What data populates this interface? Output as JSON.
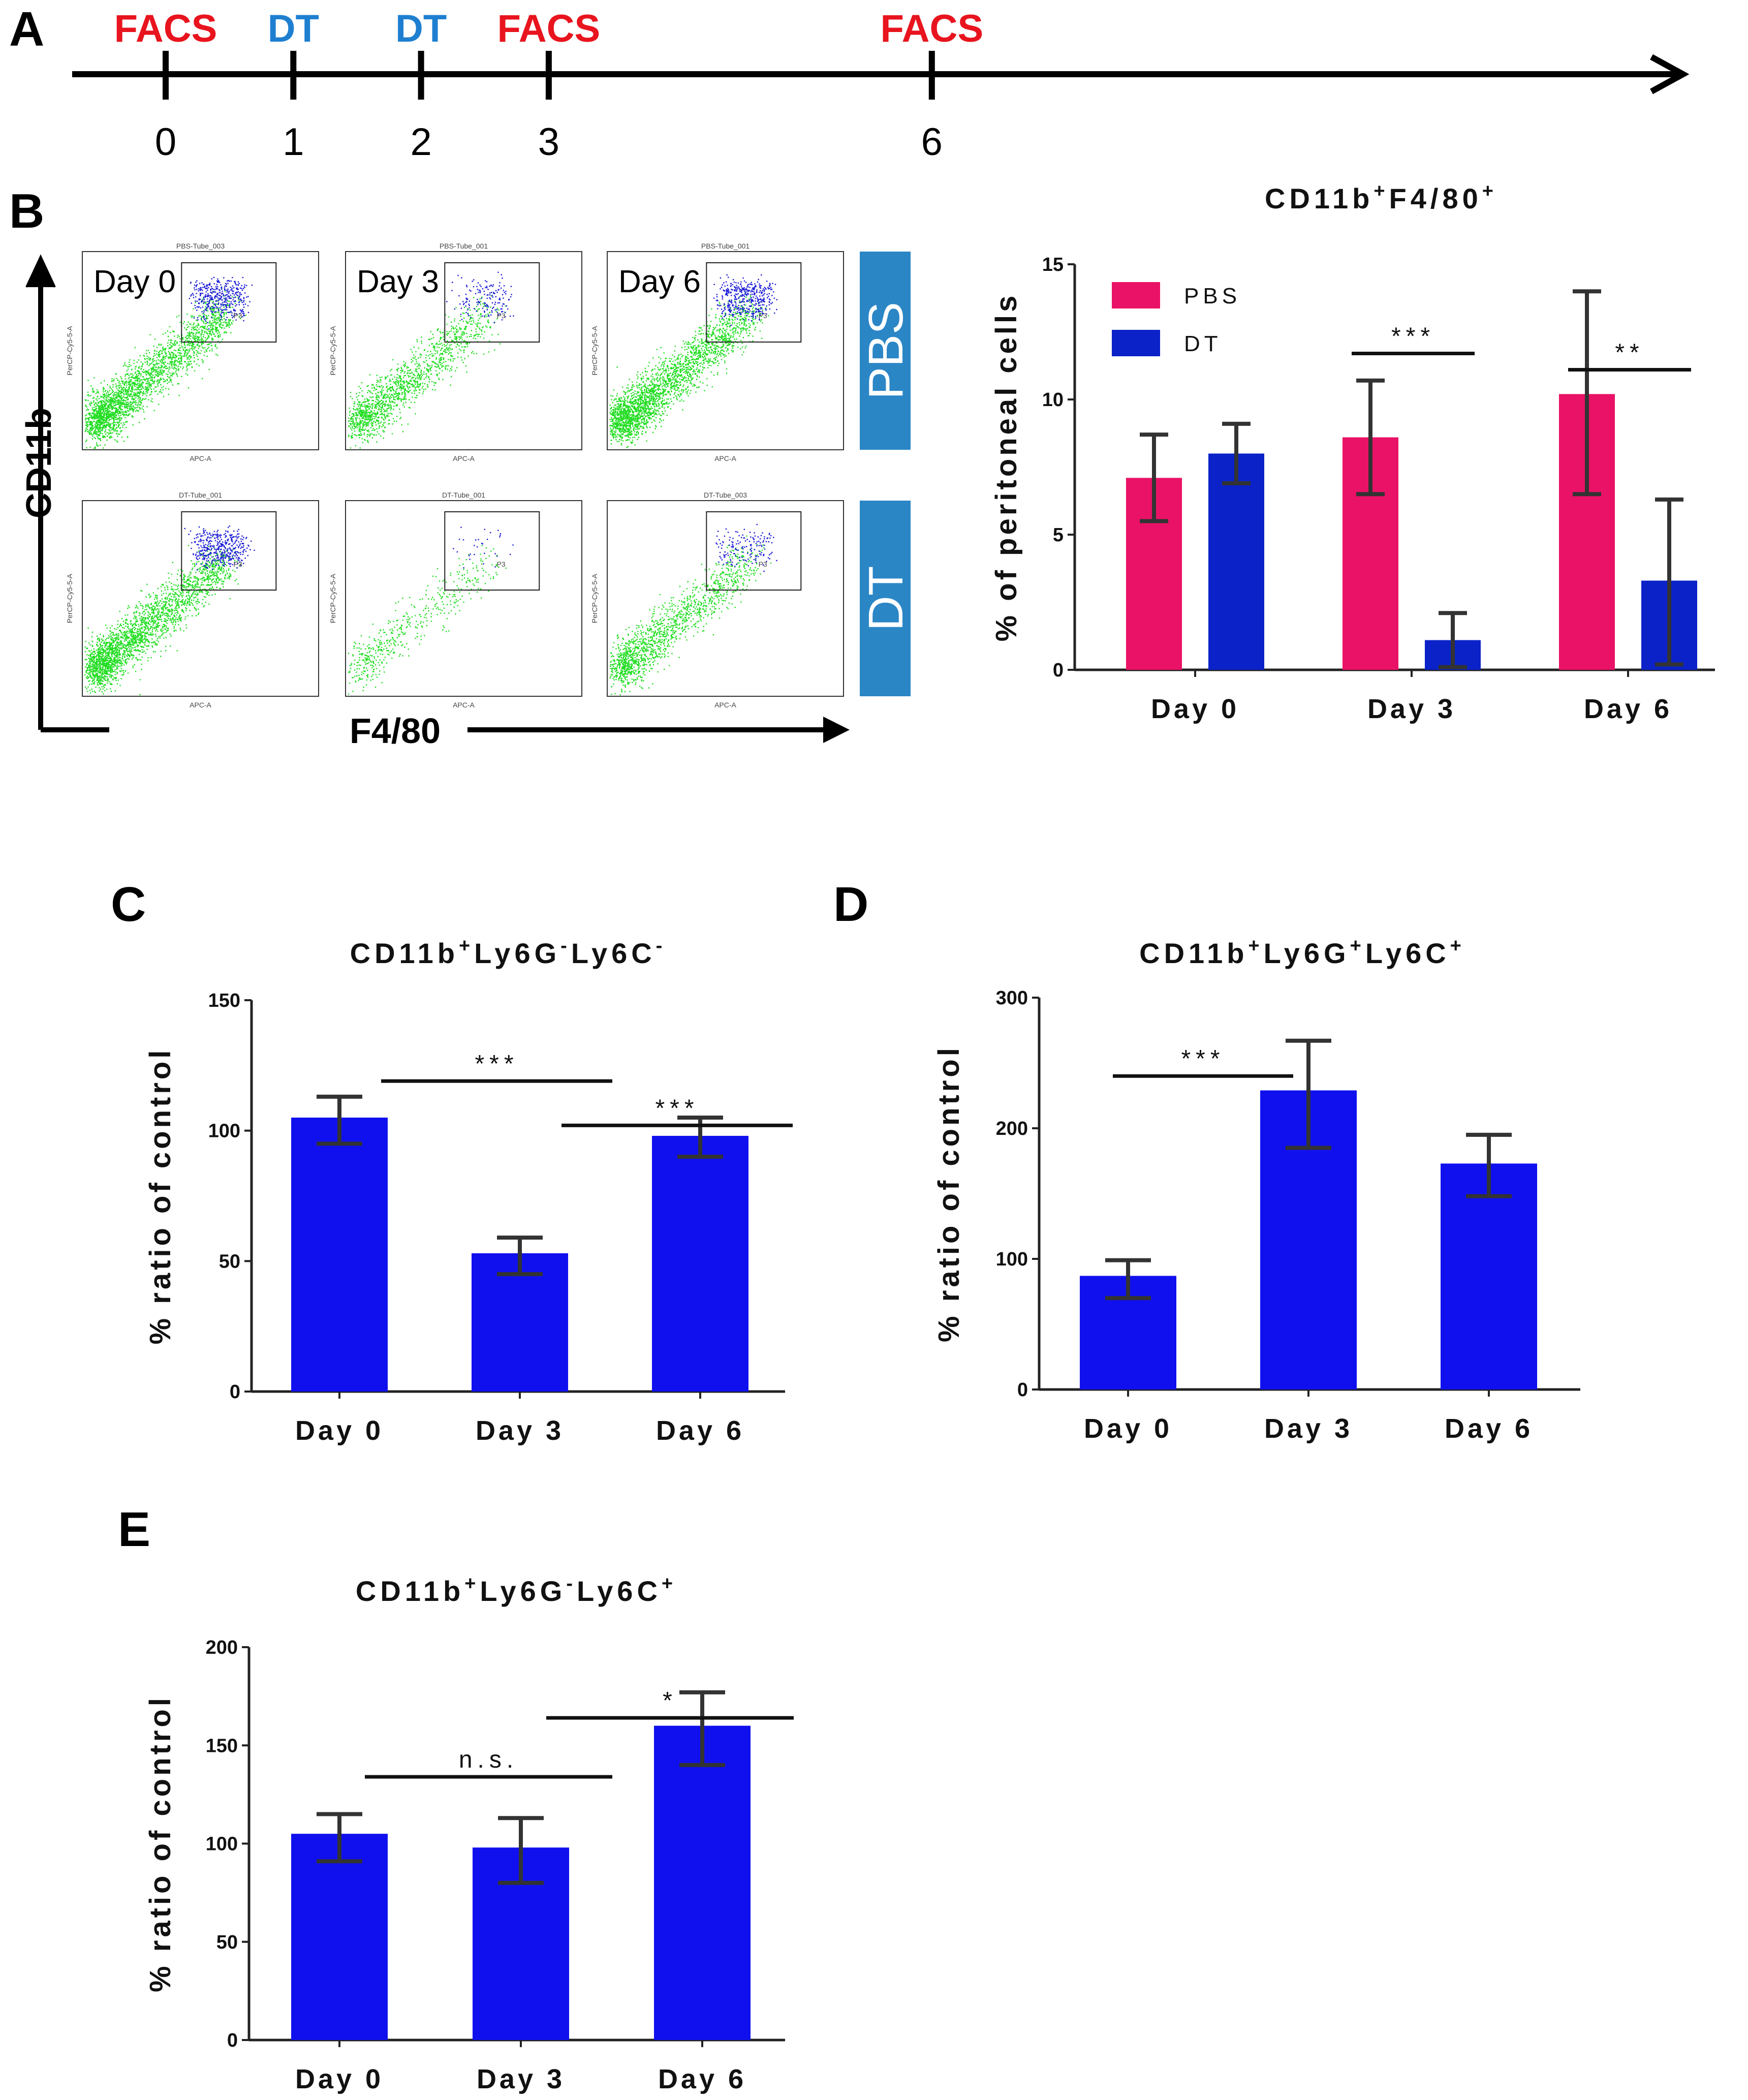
{
  "panels": {
    "A": "A",
    "B": "B",
    "C": "C",
    "D": "D",
    "E": "E"
  },
  "colors": {
    "facs": "#e8141e",
    "dt": "#1e7fd0",
    "pbs_bar": "#ea1266",
    "dt_bar": "#0a22c8",
    "bar_blue": "#1010ee",
    "facs_side_box": "#2b86c6",
    "gate_blue": "#1a1ad6",
    "dots_green": "#22dd22"
  },
  "timeline": {
    "events": [
      {
        "label": "FACS",
        "kind": "facs",
        "day": 0,
        "day_label": "0"
      },
      {
        "label": "DT",
        "kind": "dt",
        "day": 1,
        "day_label": "1"
      },
      {
        "label": "DT",
        "kind": "dt",
        "day": 2,
        "day_label": "2"
      },
      {
        "label": "FACS",
        "kind": "facs",
        "day": 3,
        "day_label": "3"
      },
      {
        "label": "FACS",
        "kind": "facs",
        "day": 6,
        "day_label": "6"
      }
    ]
  },
  "facs": {
    "y_axis": "CD11b",
    "x_axis": "F4/80",
    "rows": [
      {
        "side_label": "PBS",
        "plots": [
          {
            "day": "Day 0",
            "tube": "PBS-Tube_003",
            "gate": "P3",
            "density": "high"
          },
          {
            "day": "Day 3",
            "tube": "PBS-Tube_001",
            "gate": "P3",
            "density": "medium"
          },
          {
            "day": "Day 6",
            "tube": "PBS-Tube_001",
            "gate": "P3",
            "density": "high"
          }
        ]
      },
      {
        "side_label": "DT",
        "plots": [
          {
            "tube": "DT-Tube_001",
            "gate": "P3",
            "density": "high"
          },
          {
            "tube": "DT-Tube_001",
            "gate": "P3",
            "density": "low"
          },
          {
            "tube": "DT-Tube_003",
            "gate": "P3",
            "density": "medium"
          }
        ]
      }
    ],
    "plot_ylabel": "PerCP-Cy5-5-A",
    "plot_xlabel": "APC-A"
  },
  "chart_data": [
    {
      "id": "B",
      "type": "bar",
      "title": "CD11b",
      "title_sup1": "+",
      "title_mid": "F4/80",
      "title_sup2": "+",
      "ylabel": "% of peritoneal cells",
      "categories": [
        "Day 0",
        "Day 3",
        "Day 6"
      ],
      "ylim": [
        0,
        15
      ],
      "yticks": [
        0,
        5,
        10,
        15
      ],
      "series": [
        {
          "name": "PBS",
          "values": [
            7.1,
            8.6,
            10.2
          ],
          "err_low": [
            5.5,
            6.5,
            6.5
          ],
          "err_high": [
            8.7,
            10.7,
            14.0
          ]
        },
        {
          "name": "DT",
          "values": [
            8.0,
            1.1,
            3.3
          ],
          "err_low": [
            6.9,
            0.1,
            0.2
          ],
          "err_high": [
            9.1,
            2.1,
            6.3
          ]
        }
      ],
      "annotations": [
        {
          "text": "***",
          "category": "Day 3",
          "y": 11.7
        },
        {
          "text": "**",
          "category": "Day 6",
          "y": 11.1
        }
      ]
    },
    {
      "id": "C",
      "type": "bar",
      "title": "CD11b",
      "title_sup1": "+",
      "title_mid": "Ly6G",
      "title_sup2": "-",
      "title_end": "Ly6C",
      "title_sup3": "-",
      "ylabel": "% ratio of control",
      "categories": [
        "Day 0",
        "Day 3",
        "Day 6"
      ],
      "ylim": [
        0,
        150
      ],
      "yticks": [
        0,
        50,
        100,
        150
      ],
      "series": [
        {
          "name": "DT",
          "values": [
            105,
            53,
            98
          ],
          "err_low": [
            95,
            45,
            90
          ],
          "err_high": [
            113,
            59,
            105
          ]
        }
      ],
      "annotations": [
        {
          "text": "***",
          "from": 0,
          "to": 1,
          "y": 119
        },
        {
          "text": "***",
          "from": 1,
          "to": 2,
          "y": 102
        }
      ]
    },
    {
      "id": "D",
      "type": "bar",
      "title": "CD11b",
      "title_sup1": "+",
      "title_mid": "Ly6G",
      "title_sup2": "+",
      "title_end": "Ly6C",
      "title_sup3": "+",
      "ylabel": "% ratio of control",
      "categories": [
        "Day 0",
        "Day 3",
        "Day 6"
      ],
      "ylim": [
        0,
        300
      ],
      "yticks": [
        0,
        100,
        200,
        300
      ],
      "series": [
        {
          "name": "DT",
          "values": [
            87,
            229,
            173
          ],
          "err_low": [
            70,
            185,
            148
          ],
          "err_high": [
            99,
            267,
            195
          ]
        }
      ],
      "annotations": [
        {
          "text": "***",
          "from": 0,
          "to": 1,
          "y": 240
        }
      ]
    },
    {
      "id": "E",
      "type": "bar",
      "title": "CD11b",
      "title_sup1": "+",
      "title_mid": "Ly6G",
      "title_sup2": "-",
      "title_end": "Ly6C",
      "title_sup3": "+",
      "ylabel": "% ratio of control",
      "categories": [
        "Day 0",
        "Day 3",
        "Day 6"
      ],
      "ylim": [
        0,
        200
      ],
      "yticks": [
        0,
        50,
        100,
        150,
        200
      ],
      "series": [
        {
          "name": "DT",
          "values": [
            105,
            98,
            160
          ],
          "err_low": [
            91,
            80,
            140
          ],
          "err_high": [
            115,
            113,
            177
          ]
        }
      ],
      "annotations": [
        {
          "text": "n.s.",
          "from": 0,
          "to": 1,
          "y": 134
        },
        {
          "text": "*",
          "from": 1,
          "to": 2,
          "y": 164
        }
      ]
    }
  ]
}
